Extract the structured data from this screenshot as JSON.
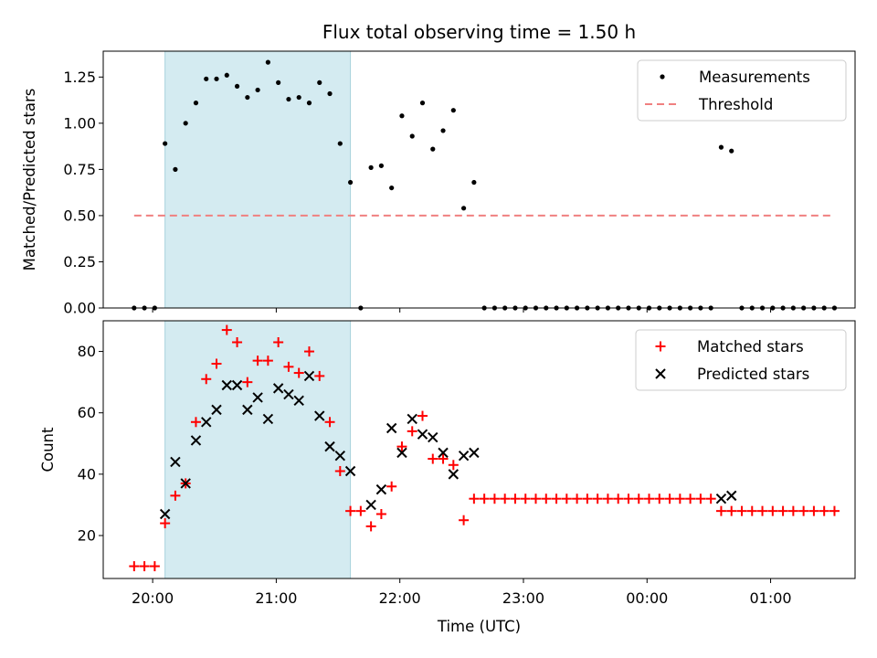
{
  "chart_data": [
    {
      "type": "scatter",
      "title": "Flux total observing time = 1.50 h",
      "xlabel": "",
      "ylabel": "Matched/Predicted stars",
      "ylim": [
        0,
        1.39
      ],
      "xlim": [
        "19:36",
        "01:41"
      ],
      "yticks": [
        "0.00",
        "0.25",
        "0.50",
        "0.75",
        "1.00",
        "1.25"
      ],
      "ytick_values": [
        0,
        0.25,
        0.5,
        0.75,
        1.0,
        1.25
      ],
      "legend_position": "top-right",
      "highlight_span": [
        "20:06",
        "21:36"
      ],
      "highlight_color": "#d4ebf1",
      "series": [
        {
          "name": "Measurements",
          "marker": "dot",
          "color": "#000000",
          "points": [
            [
              "19:51",
              0
            ],
            [
              "19:56",
              0
            ],
            [
              "20:01",
              0
            ],
            [
              "20:06",
              0.89
            ],
            [
              "20:11",
              0.75
            ],
            [
              "20:16",
              1.0
            ],
            [
              "20:21",
              1.11
            ],
            [
              "20:26",
              1.24
            ],
            [
              "20:31",
              1.24
            ],
            [
              "20:36",
              1.26
            ],
            [
              "20:41",
              1.2
            ],
            [
              "20:46",
              1.14
            ],
            [
              "20:51",
              1.18
            ],
            [
              "20:56",
              1.33
            ],
            [
              "21:01",
              1.22
            ],
            [
              "21:06",
              1.13
            ],
            [
              "21:11",
              1.14
            ],
            [
              "21:16",
              1.11
            ],
            [
              "21:21",
              1.22
            ],
            [
              "21:26",
              1.16
            ],
            [
              "21:31",
              0.89
            ],
            [
              "21:36",
              0.68
            ],
            [
              "21:41",
              0
            ],
            [
              "21:46",
              0.76
            ],
            [
              "21:51",
              0.77
            ],
            [
              "21:56",
              0.65
            ],
            [
              "22:01",
              1.04
            ],
            [
              "22:06",
              0.93
            ],
            [
              "22:11",
              1.11
            ],
            [
              "22:16",
              0.86
            ],
            [
              "22:21",
              0.96
            ],
            [
              "22:26",
              1.07
            ],
            [
              "22:31",
              0.54
            ],
            [
              "22:36",
              0.68
            ],
            [
              "22:41",
              0
            ],
            [
              "22:46",
              0
            ],
            [
              "22:51",
              0
            ],
            [
              "22:56",
              0
            ],
            [
              "23:01",
              0
            ],
            [
              "23:06",
              0
            ],
            [
              "23:11",
              0
            ],
            [
              "23:16",
              0
            ],
            [
              "23:21",
              0
            ],
            [
              "23:26",
              0
            ],
            [
              "23:31",
              0
            ],
            [
              "23:36",
              0
            ],
            [
              "23:41",
              0
            ],
            [
              "23:46",
              0
            ],
            [
              "23:51",
              0
            ],
            [
              "23:56",
              0
            ],
            [
              "00:01",
              0
            ],
            [
              "00:06",
              0
            ],
            [
              "00:11",
              0
            ],
            [
              "00:16",
              0
            ],
            [
              "00:21",
              0
            ],
            [
              "00:26",
              0
            ],
            [
              "00:31",
              0
            ],
            [
              "00:36",
              0.87
            ],
            [
              "00:41",
              0.85
            ],
            [
              "00:46",
              0
            ],
            [
              "00:51",
              0
            ],
            [
              "00:56",
              0
            ],
            [
              "01:01",
              0
            ],
            [
              "01:06",
              0
            ],
            [
              "01:11",
              0
            ],
            [
              "01:16",
              0
            ],
            [
              "01:21",
              0
            ],
            [
              "01:26",
              0
            ],
            [
              "01:31",
              0
            ]
          ]
        },
        {
          "name": "Threshold",
          "marker": "dashed-line",
          "color": "#f08080",
          "points": [
            [
              "19:51",
              0.5
            ],
            [
              "01:31",
              0.5
            ]
          ]
        }
      ]
    },
    {
      "type": "scatter",
      "title": "",
      "xlabel": "Time (UTC)",
      "ylabel": "Count",
      "ylim": [
        6,
        90
      ],
      "xlim": [
        "19:36",
        "01:41"
      ],
      "yticks": [
        "20",
        "40",
        "60",
        "80"
      ],
      "ytick_values": [
        20,
        40,
        60,
        80
      ],
      "xticks": [
        "20:00",
        "21:00",
        "22:00",
        "23:00",
        "00:00",
        "01:00"
      ],
      "legend_position": "top-right",
      "highlight_span": [
        "20:06",
        "21:36"
      ],
      "highlight_color": "#d4ebf1",
      "series": [
        {
          "name": "Matched stars",
          "marker": "plus",
          "color": "#ff0000",
          "points": [
            [
              "19:51",
              10
            ],
            [
              "19:56",
              10
            ],
            [
              "20:01",
              10
            ],
            [
              "20:06",
              24
            ],
            [
              "20:11",
              33
            ],
            [
              "20:16",
              37
            ],
            [
              "20:21",
              57
            ],
            [
              "20:26",
              71
            ],
            [
              "20:31",
              76
            ],
            [
              "20:36",
              87
            ],
            [
              "20:41",
              83
            ],
            [
              "20:46",
              70
            ],
            [
              "20:51",
              77
            ],
            [
              "20:56",
              77
            ],
            [
              "21:01",
              83
            ],
            [
              "21:06",
              75
            ],
            [
              "21:11",
              73
            ],
            [
              "21:16",
              80
            ],
            [
              "21:21",
              72
            ],
            [
              "21:26",
              57
            ],
            [
              "21:31",
              41
            ],
            [
              "21:36",
              28
            ],
            [
              "21:41",
              28
            ],
            [
              "21:46",
              23
            ],
            [
              "21:51",
              27
            ],
            [
              "21:56",
              36
            ],
            [
              "22:01",
              49
            ],
            [
              "22:06",
              54
            ],
            [
              "22:11",
              59
            ],
            [
              "22:16",
              45
            ],
            [
              "22:21",
              45
            ],
            [
              "22:26",
              43
            ],
            [
              "22:31",
              25
            ],
            [
              "22:36",
              32
            ],
            [
              "22:41",
              32
            ],
            [
              "22:46",
              32
            ],
            [
              "22:51",
              32
            ],
            [
              "22:56",
              32
            ],
            [
              "23:01",
              32
            ],
            [
              "23:06",
              32
            ],
            [
              "23:11",
              32
            ],
            [
              "23:16",
              32
            ],
            [
              "23:21",
              32
            ],
            [
              "23:26",
              32
            ],
            [
              "23:31",
              32
            ],
            [
              "23:36",
              32
            ],
            [
              "23:41",
              32
            ],
            [
              "23:46",
              32
            ],
            [
              "23:51",
              32
            ],
            [
              "23:56",
              32
            ],
            [
              "00:01",
              32
            ],
            [
              "00:06",
              32
            ],
            [
              "00:11",
              32
            ],
            [
              "00:16",
              32
            ],
            [
              "00:21",
              32
            ],
            [
              "00:26",
              32
            ],
            [
              "00:31",
              32
            ],
            [
              "00:36",
              28
            ],
            [
              "00:41",
              28
            ],
            [
              "00:46",
              28
            ],
            [
              "00:51",
              28
            ],
            [
              "00:56",
              28
            ],
            [
              "01:01",
              28
            ],
            [
              "01:06",
              28
            ],
            [
              "01:11",
              28
            ],
            [
              "01:16",
              28
            ],
            [
              "01:21",
              28
            ],
            [
              "01:26",
              28
            ],
            [
              "01:31",
              28
            ]
          ]
        },
        {
          "name": "Predicted stars",
          "marker": "x",
          "color": "#000000",
          "points": [
            [
              "20:06",
              27
            ],
            [
              "20:11",
              44
            ],
            [
              "20:16",
              37
            ],
            [
              "20:21",
              51
            ],
            [
              "20:26",
              57
            ],
            [
              "20:31",
              61
            ],
            [
              "20:36",
              69
            ],
            [
              "20:41",
              69
            ],
            [
              "20:46",
              61
            ],
            [
              "20:51",
              65
            ],
            [
              "20:56",
              58
            ],
            [
              "21:01",
              68
            ],
            [
              "21:06",
              66
            ],
            [
              "21:11",
              64
            ],
            [
              "21:16",
              72
            ],
            [
              "21:21",
              59
            ],
            [
              "21:26",
              49
            ],
            [
              "21:31",
              46
            ],
            [
              "21:36",
              41
            ],
            [
              "21:46",
              30
            ],
            [
              "21:51",
              35
            ],
            [
              "21:56",
              55
            ],
            [
              "22:01",
              47
            ],
            [
              "22:06",
              58
            ],
            [
              "22:11",
              53
            ],
            [
              "22:16",
              52
            ],
            [
              "22:21",
              47
            ],
            [
              "22:26",
              40
            ],
            [
              "22:31",
              46
            ],
            [
              "22:36",
              47
            ],
            [
              "00:36",
              32
            ],
            [
              "00:41",
              33
            ]
          ]
        }
      ]
    }
  ]
}
